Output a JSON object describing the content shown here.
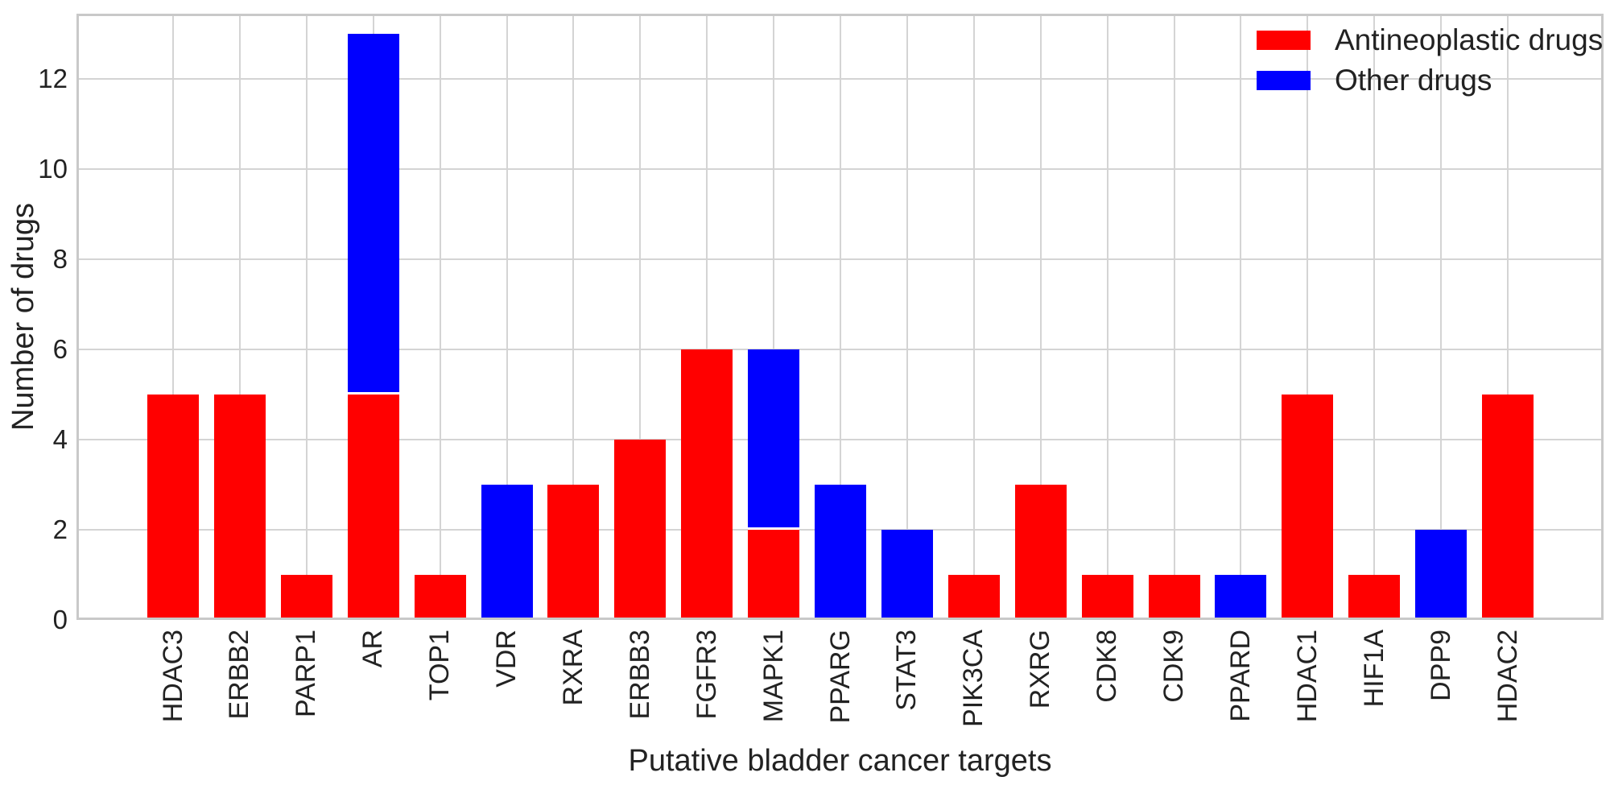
{
  "chart_data": {
    "type": "bar",
    "stacked": true,
    "title": "",
    "xlabel": "Putative bladder cancer targets",
    "ylabel": "Number of drugs",
    "categories": [
      "HDAC3",
      "ERBB2",
      "PARP1",
      "AR",
      "TOP1",
      "VDR",
      "RXRA",
      "ERBB3",
      "FGFR3",
      "MAPK1",
      "PPARG",
      "STAT3",
      "PIK3CA",
      "RXRG",
      "CDK8",
      "CDK9",
      "PPARD",
      "HDAC1",
      "HIF1A",
      "DPP9",
      "HDAC2"
    ],
    "series": [
      {
        "name": "Antineoplastic drugs",
        "color": "#ff0000",
        "values": [
          5,
          5,
          1,
          5,
          1,
          0,
          3,
          4,
          6,
          2,
          0,
          0,
          1,
          3,
          1,
          1,
          0,
          5,
          1,
          0,
          5
        ]
      },
      {
        "name": "Other drugs",
        "color": "#0000ff",
        "values": [
          0,
          0,
          0,
          8,
          0,
          3,
          0,
          0,
          0,
          4,
          3,
          2,
          0,
          0,
          0,
          0,
          1,
          0,
          0,
          2,
          0
        ]
      }
    ],
    "totals": [
      5,
      5,
      1,
      13,
      1,
      3,
      3,
      4,
      6,
      6,
      3,
      2,
      1,
      3,
      1,
      1,
      1,
      5,
      1,
      2,
      5
    ],
    "yticks": [
      0,
      2,
      4,
      6,
      8,
      10,
      12
    ],
    "ylim": [
      0,
      13.45
    ],
    "grid": true,
    "grid_color": "#d4d4d4",
    "spine_color": "#c9c9c9",
    "segment_divider_color": "#ffffff",
    "legend_position": "upper right",
    "legend": [
      "Antineoplastic drugs",
      "Other drugs"
    ]
  }
}
